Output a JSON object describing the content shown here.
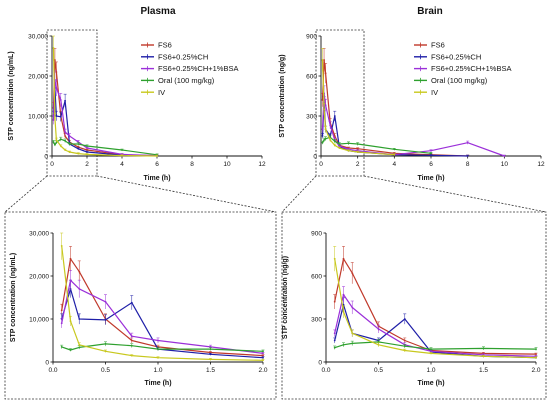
{
  "colors": {
    "FS6": "#c0392b",
    "FS6+0.25%CH": "#1f1fa8",
    "FS6+0.25%CH+1%BSA": "#9b30d9",
    "Oral (100 mg/kg)": "#2ea02e",
    "IV": "#c8c81e"
  },
  "legend": [
    "FS6",
    "FS6+0.25%CH",
    "FS6+0.25%CH+1%BSA",
    "Oral (100 mg/kg)",
    "IV"
  ],
  "chart_data": [
    {
      "id": "plasma-main",
      "type": "line",
      "title": "Plasma",
      "xlabel": "Time (h)",
      "ylabel": "STP concentration (ng/mL)",
      "xlim": [
        0,
        12
      ],
      "ylim": [
        0,
        30000
      ],
      "xticks": [
        "0",
        "2",
        "4",
        "6",
        "8",
        "10",
        "12"
      ],
      "yticks": [
        "0",
        "10,000",
        "20,000",
        "30,000"
      ],
      "grid": false,
      "legend_position": "right",
      "series": [
        {
          "name": "FS6",
          "x": [
            0.083,
            0.167,
            0.25,
            0.5,
            0.75,
            1,
            1.5,
            2,
            4,
            6
          ],
          "y": [
            12000,
            24000,
            21000,
            10000,
            5000,
            3500,
            2200,
            1500,
            300,
            100
          ]
        },
        {
          "name": "FS6+0.25%CH",
          "x": [
            0.083,
            0.167,
            0.25,
            0.5,
            0.75,
            1,
            1.5,
            2,
            4,
            6
          ],
          "y": [
            10000,
            17000,
            10000,
            9800,
            13800,
            3000,
            1800,
            1000,
            200,
            50
          ]
        },
        {
          "name": "FS6+0.25%CH+1%BSA",
          "x": [
            0.083,
            0.167,
            0.25,
            0.5,
            0.75,
            1,
            1.5,
            2,
            4,
            6
          ],
          "y": [
            9000,
            19000,
            17000,
            14000,
            6000,
            5000,
            3500,
            2000,
            400,
            100
          ]
        },
        {
          "name": "Oral (100 mg/kg)",
          "x": [
            0.083,
            0.167,
            0.25,
            0.5,
            0.75,
            1,
            1.5,
            2,
            4,
            6
          ],
          "y": [
            3500,
            2800,
            3400,
            4200,
            3800,
            3000,
            3000,
            2500,
            1500,
            300
          ]
        },
        {
          "name": "IV",
          "x": [
            0.083,
            0.167,
            0.25,
            0.5,
            0.75,
            1,
            1.5,
            2,
            4,
            6
          ],
          "y": [
            27000,
            9500,
            4000,
            2500,
            1500,
            1000,
            600,
            400,
            100,
            0
          ]
        }
      ]
    },
    {
      "id": "brain-main",
      "type": "line",
      "title": "Brain",
      "xlabel": "Time (h)",
      "ylabel": "STP concentration (ng/g)",
      "xlim": [
        0,
        12
      ],
      "ylim": [
        0,
        900
      ],
      "xticks": [
        "0",
        "2",
        "4",
        "6",
        "8",
        "10",
        "12"
      ],
      "yticks": [
        "0",
        "300",
        "600",
        "900"
      ],
      "grid": false,
      "legend_position": "right",
      "series": [
        {
          "name": "FS6",
          "x": [
            0.083,
            0.167,
            0.25,
            0.5,
            0.75,
            1,
            1.5,
            2,
            4,
            6,
            8
          ],
          "y": [
            420,
            720,
            620,
            250,
            150,
            80,
            60,
            55,
            20,
            10,
            0
          ]
        },
        {
          "name": "FS6+0.25%CH",
          "x": [
            0.083,
            0.167,
            0.25,
            0.5,
            0.75,
            1,
            1.5,
            2,
            4,
            6,
            8
          ],
          "y": [
            150,
            400,
            200,
            150,
            300,
            70,
            40,
            30,
            10,
            5,
            0
          ]
        },
        {
          "name": "FS6+0.25%CH+1%BSA",
          "x": [
            0.083,
            0.167,
            0.25,
            0.5,
            0.75,
            1,
            1.5,
            2,
            4,
            6,
            8,
            10
          ],
          "y": [
            200,
            470,
            380,
            230,
            120,
            75,
            50,
            40,
            10,
            40,
            100,
            0
          ]
        },
        {
          "name": "Oral (100 mg/kg)",
          "x": [
            0.083,
            0.167,
            0.25,
            0.5,
            0.75,
            1,
            1.5,
            2,
            4,
            6
          ],
          "y": [
            100,
            120,
            130,
            140,
            110,
            90,
            95,
            90,
            50,
            20
          ]
        },
        {
          "name": "IV",
          "x": [
            0.083,
            0.167,
            0.25,
            0.5,
            0.75,
            1,
            1.5,
            2,
            4
          ],
          "y": [
            720,
            350,
            200,
            120,
            80,
            60,
            40,
            30,
            10
          ]
        }
      ]
    },
    {
      "id": "plasma-zoom",
      "type": "line",
      "title": "",
      "xlabel": "Time (h)",
      "ylabel": "STP concentration (ng/mL)",
      "xlim": [
        0,
        2
      ],
      "ylim": [
        0,
        30000
      ],
      "xticks": [
        "0.0",
        "0.5",
        "1.0",
        "1.5",
        "2.0"
      ],
      "yticks": [
        "0",
        "10,000",
        "20,000",
        "30,000"
      ],
      "grid": false,
      "series": [
        {
          "name": "FS6",
          "x": [
            0.083,
            0.167,
            0.25,
            0.5,
            0.75,
            1,
            1.5,
            2
          ],
          "y": [
            12000,
            24000,
            21000,
            10000,
            5000,
            3500,
            2200,
            1500
          ]
        },
        {
          "name": "FS6+0.25%CH",
          "x": [
            0.083,
            0.167,
            0.25,
            0.5,
            0.75,
            1,
            1.5,
            2
          ],
          "y": [
            10000,
            17000,
            10000,
            9800,
            13800,
            3000,
            1800,
            1000
          ]
        },
        {
          "name": "FS6+0.25%CH+1%BSA",
          "x": [
            0.083,
            0.167,
            0.25,
            0.5,
            0.75,
            1,
            1.5,
            2
          ],
          "y": [
            9000,
            19000,
            17000,
            14000,
            6000,
            5000,
            3500,
            2000
          ]
        },
        {
          "name": "Oral (100 mg/kg)",
          "x": [
            0.083,
            0.167,
            0.25,
            0.5,
            0.75,
            1,
            1.5,
            2
          ],
          "y": [
            3500,
            2800,
            3400,
            4200,
            3800,
            3000,
            3000,
            2500
          ]
        },
        {
          "name": "IV",
          "x": [
            0.083,
            0.167,
            0.25,
            0.5,
            0.75,
            1,
            1.5,
            2
          ],
          "y": [
            27000,
            9500,
            4000,
            2500,
            1500,
            1000,
            600,
            400
          ]
        }
      ]
    },
    {
      "id": "brain-zoom",
      "type": "line",
      "title": "",
      "xlabel": "Time (h)",
      "ylabel": "STP concentration (ng/g)",
      "xlim": [
        0,
        2
      ],
      "ylim": [
        0,
        900
      ],
      "xticks": [
        "0.0",
        "0.5",
        "1.0",
        "1.5",
        "2.0"
      ],
      "yticks": [
        "0",
        "300",
        "600",
        "900"
      ],
      "grid": false,
      "series": [
        {
          "name": "FS6",
          "x": [
            0.083,
            0.167,
            0.25,
            0.5,
            0.75,
            1,
            1.5,
            2
          ],
          "y": [
            420,
            720,
            620,
            250,
            150,
            80,
            60,
            55
          ]
        },
        {
          "name": "FS6+0.25%CH",
          "x": [
            0.083,
            0.167,
            0.25,
            0.5,
            0.75,
            1,
            1.5,
            2
          ],
          "y": [
            150,
            400,
            200,
            150,
            300,
            70,
            40,
            30
          ]
        },
        {
          "name": "FS6+0.25%CH+1%BSA",
          "x": [
            0.083,
            0.167,
            0.25,
            0.5,
            0.75,
            1,
            1.5,
            2
          ],
          "y": [
            200,
            470,
            380,
            230,
            120,
            75,
            50,
            40
          ]
        },
        {
          "name": "Oral (100 mg/kg)",
          "x": [
            0.083,
            0.167,
            0.25,
            0.5,
            0.75,
            1,
            1.5,
            2
          ],
          "y": [
            100,
            120,
            130,
            140,
            110,
            90,
            95,
            90
          ]
        },
        {
          "name": "IV",
          "x": [
            0.083,
            0.167,
            0.25,
            0.5,
            0.75,
            1,
            1.5,
            2
          ],
          "y": [
            720,
            350,
            200,
            120,
            80,
            60,
            40,
            30
          ]
        }
      ]
    }
  ]
}
